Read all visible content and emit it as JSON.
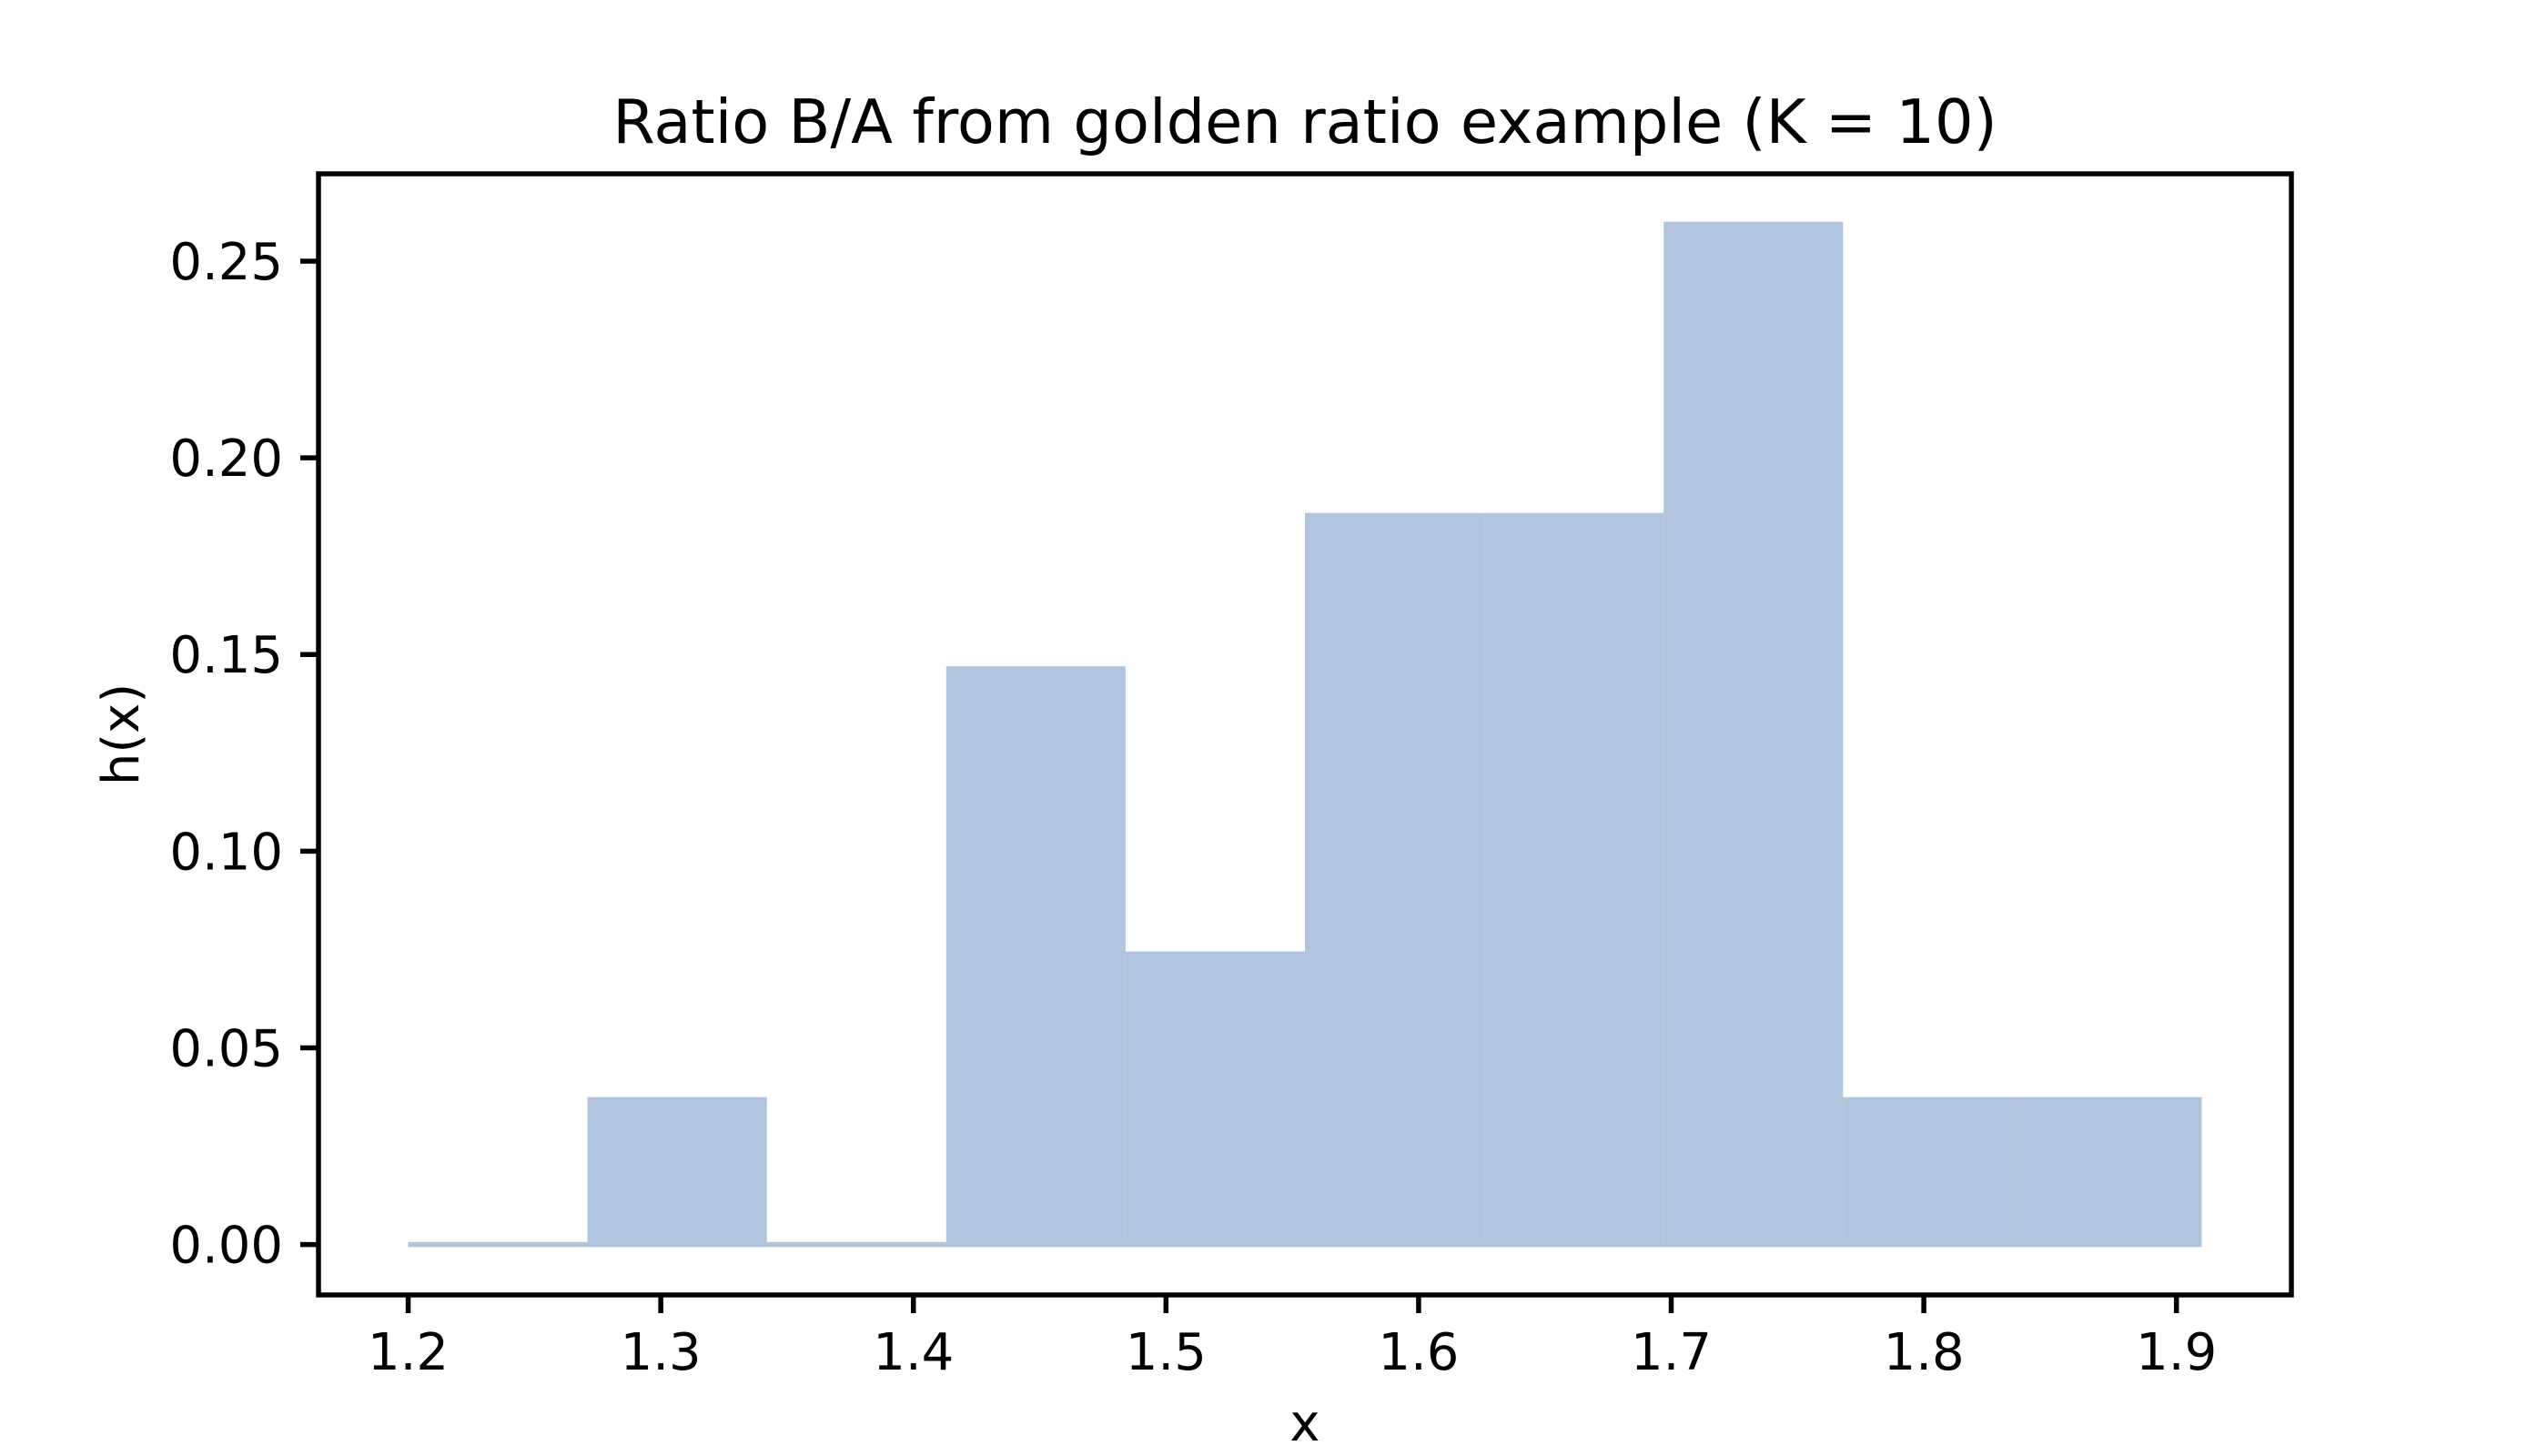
{
  "figure": {
    "title": "Ratio B/A from golden ratio example (K = 10)",
    "xlabel": "x",
    "ylabel": "h(x)"
  },
  "chart_data": {
    "type": "bar",
    "subtype": "histogram",
    "title": "Ratio B/A from golden ratio example (K = 10)",
    "xlabel": "x",
    "ylabel": "h(x)",
    "bin_edges": [
      1.2,
      1.271,
      1.342,
      1.413,
      1.484,
      1.555,
      1.626,
      1.697,
      1.768,
      1.839,
      1.91
    ],
    "heights": [
      0,
      0.0375,
      0,
      0.147,
      0.0745,
      0.186,
      0.186,
      0.26,
      0.0375,
      0.0375
    ],
    "xticks": [
      {
        "value": 1.2,
        "label": "1.2"
      },
      {
        "value": 1.3,
        "label": "1.3"
      },
      {
        "value": 1.4,
        "label": "1.4"
      },
      {
        "value": 1.5,
        "label": "1.5"
      },
      {
        "value": 1.6,
        "label": "1.6"
      },
      {
        "value": 1.7,
        "label": "1.7"
      },
      {
        "value": 1.8,
        "label": "1.8"
      },
      {
        "value": 1.9,
        "label": "1.9"
      }
    ],
    "yticks": [
      {
        "value": 0.0,
        "label": "0.00"
      },
      {
        "value": 0.05,
        "label": "0.05"
      },
      {
        "value": 0.1,
        "label": "0.10"
      },
      {
        "value": 0.15,
        "label": "0.15"
      },
      {
        "value": 0.2,
        "label": "0.20"
      },
      {
        "value": 0.25,
        "label": "0.25"
      }
    ],
    "xlim": [
      1.1645,
      1.9455
    ],
    "ylim": [
      -0.0128,
      0.2722
    ],
    "grid": false,
    "legend": null,
    "baseline_strip_at_zero": true,
    "bar_color": "#b0c4de",
    "axis_color": "#000000",
    "text_color": "#000000",
    "background_color": "#ffffff"
  }
}
